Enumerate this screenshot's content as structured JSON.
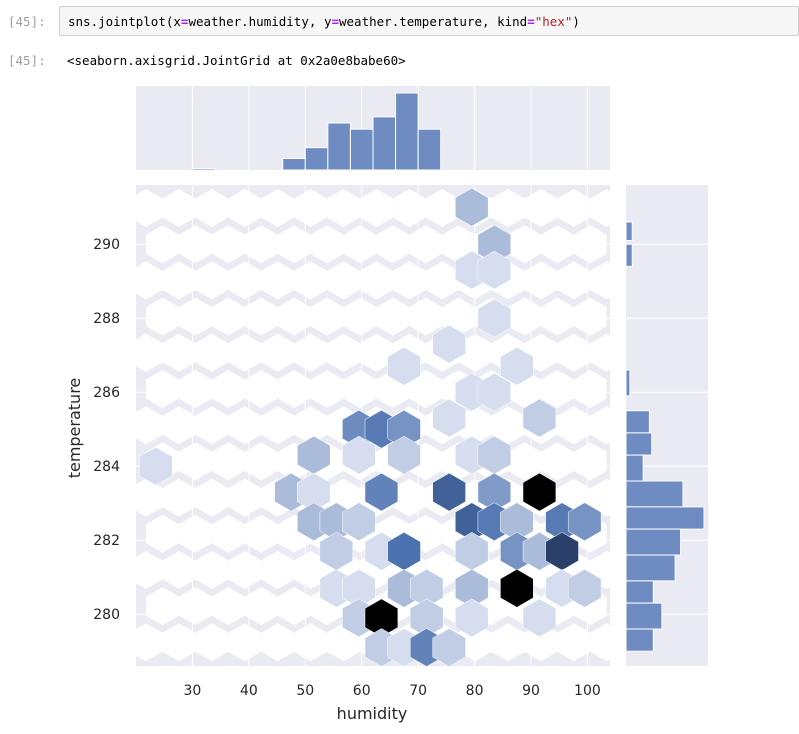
{
  "cell": {
    "input_prompt": "[45]:",
    "output_prompt": "[45]:",
    "code_tokens": [
      {
        "t": "sns",
        "c": "n"
      },
      {
        "t": ".",
        "c": "n"
      },
      {
        "t": "jointplot",
        "c": "n"
      },
      {
        "t": "(",
        "c": "n"
      },
      {
        "t": "x",
        "c": "n"
      },
      {
        "t": "=",
        "c": "kw"
      },
      {
        "t": "weather",
        "c": "n"
      },
      {
        "t": ".",
        "c": "n"
      },
      {
        "t": "humidity",
        "c": "n"
      },
      {
        "t": ", ",
        "c": "n"
      },
      {
        "t": "y",
        "c": "n"
      },
      {
        "t": "=",
        "c": "kw"
      },
      {
        "t": "weather",
        "c": "n"
      },
      {
        "t": ".",
        "c": "n"
      },
      {
        "t": "temperature",
        "c": "n"
      },
      {
        "t": ", ",
        "c": "n"
      },
      {
        "t": "kind",
        "c": "n"
      },
      {
        "t": "=",
        "c": "kw"
      },
      {
        "t": "\"hex\"",
        "c": "s"
      },
      {
        "t": ")",
        "c": "n"
      }
    ],
    "output_text": "<seaborn.axisgrid.JointGrid at 0x2a0e8babe60>"
  },
  "colors": {
    "hist_fill": "#6f8cc2",
    "hex_base": "#4c72b0",
    "grid_bg": "#eaeaf2"
  },
  "chart_data": {
    "type": "hexbin",
    "xlabel": "humidity",
    "ylabel": "temperature",
    "xlim": [
      20,
      104
    ],
    "ylim": [
      278.6,
      291.6
    ],
    "xticks": [
      30,
      40,
      50,
      60,
      70,
      80,
      90,
      100
    ],
    "yticks": [
      280,
      282,
      284,
      286,
      288,
      290
    ],
    "hexbins": [
      {
        "x": 79.5,
        "y": 291.0,
        "d": 0.3
      },
      {
        "x": 83.5,
        "y": 290.0,
        "d": 0.3
      },
      {
        "x": 79.5,
        "y": 289.3,
        "d": 0.1
      },
      {
        "x": 83.5,
        "y": 289.3,
        "d": 0.1
      },
      {
        "x": 83.5,
        "y": 288.0,
        "d": 0.1
      },
      {
        "x": 75.5,
        "y": 287.3,
        "d": 0.1
      },
      {
        "x": 67.5,
        "y": 286.7,
        "d": 0.1
      },
      {
        "x": 79.5,
        "y": 286.0,
        "d": 0.1
      },
      {
        "x": 83.5,
        "y": 286.0,
        "d": 0.1
      },
      {
        "x": 87.5,
        "y": 286.7,
        "d": 0.1
      },
      {
        "x": 75.5,
        "y": 285.3,
        "d": 0.1
      },
      {
        "x": 91.5,
        "y": 285.3,
        "d": 0.2
      },
      {
        "x": 59.5,
        "y": 285.0,
        "d": 0.6
      },
      {
        "x": 63.5,
        "y": 285.0,
        "d": 0.7
      },
      {
        "x": 67.5,
        "y": 285.0,
        "d": 0.55
      },
      {
        "x": 23.5,
        "y": 284.0,
        "d": 0.1
      },
      {
        "x": 51.5,
        "y": 284.3,
        "d": 0.3
      },
      {
        "x": 59.5,
        "y": 284.3,
        "d": 0.1
      },
      {
        "x": 67.5,
        "y": 284.3,
        "d": 0.2
      },
      {
        "x": 79.5,
        "y": 284.3,
        "d": 0.1
      },
      {
        "x": 83.5,
        "y": 284.3,
        "d": 0.2
      },
      {
        "x": 47.5,
        "y": 283.3,
        "d": 0.3
      },
      {
        "x": 51.5,
        "y": 283.3,
        "d": 0.1
      },
      {
        "x": 63.5,
        "y": 283.3,
        "d": 0.65
      },
      {
        "x": 75.5,
        "y": 283.3,
        "d": 0.8
      },
      {
        "x": 83.5,
        "y": 283.3,
        "d": 0.5
      },
      {
        "x": 91.5,
        "y": 283.3,
        "d": 1.0
      },
      {
        "x": 51.5,
        "y": 282.5,
        "d": 0.3
      },
      {
        "x": 55.5,
        "y": 282.5,
        "d": 0.3
      },
      {
        "x": 59.5,
        "y": 282.5,
        "d": 0.2
      },
      {
        "x": 79.5,
        "y": 282.5,
        "d": 0.8
      },
      {
        "x": 83.5,
        "y": 282.5,
        "d": 0.7
      },
      {
        "x": 87.5,
        "y": 282.5,
        "d": 0.3
      },
      {
        "x": 95.5,
        "y": 282.5,
        "d": 0.7
      },
      {
        "x": 99.5,
        "y": 282.5,
        "d": 0.55
      },
      {
        "x": 55.5,
        "y": 281.7,
        "d": 0.2
      },
      {
        "x": 63.5,
        "y": 281.7,
        "d": 0.1
      },
      {
        "x": 67.5,
        "y": 281.7,
        "d": 0.75
      },
      {
        "x": 79.5,
        "y": 281.7,
        "d": 0.2
      },
      {
        "x": 87.5,
        "y": 281.7,
        "d": 0.55
      },
      {
        "x": 91.5,
        "y": 281.7,
        "d": 0.3
      },
      {
        "x": 95.5,
        "y": 281.7,
        "d": 0.9
      },
      {
        "x": 55.5,
        "y": 280.7,
        "d": 0.1
      },
      {
        "x": 59.5,
        "y": 280.7,
        "d": 0.1
      },
      {
        "x": 67.5,
        "y": 280.7,
        "d": 0.3
      },
      {
        "x": 71.5,
        "y": 280.7,
        "d": 0.2
      },
      {
        "x": 79.5,
        "y": 280.7,
        "d": 0.3
      },
      {
        "x": 87.5,
        "y": 280.7,
        "d": 1.0
      },
      {
        "x": 95.5,
        "y": 280.7,
        "d": 0.1
      },
      {
        "x": 99.5,
        "y": 280.7,
        "d": 0.2
      },
      {
        "x": 59.5,
        "y": 279.9,
        "d": 0.2
      },
      {
        "x": 63.5,
        "y": 279.9,
        "d": 1.0
      },
      {
        "x": 71.5,
        "y": 279.9,
        "d": 0.2
      },
      {
        "x": 79.5,
        "y": 279.9,
        "d": 0.1
      },
      {
        "x": 91.5,
        "y": 279.9,
        "d": 0.1
      },
      {
        "x": 63.5,
        "y": 279.1,
        "d": 0.2
      },
      {
        "x": 67.5,
        "y": 279.1,
        "d": 0.1
      },
      {
        "x": 71.5,
        "y": 279.1,
        "d": 0.65
      },
      {
        "x": 75.5,
        "y": 279.1,
        "d": 0.2
      }
    ],
    "x_hist": {
      "edges": [
        25.8,
        30,
        34,
        37.8,
        41.9,
        46,
        50,
        54,
        58,
        62,
        66,
        70,
        74,
        78,
        82,
        86,
        90,
        94,
        98,
        102,
        106
      ],
      "heights_rel": [
        0,
        0.02,
        0,
        0,
        0,
        0.15,
        0.29,
        0.61,
        0.53,
        0.69,
        1.0,
        0.53,
        0,
        0,
        0,
        0,
        0,
        0,
        0,
        0
      ]
    },
    "y_hist": {
      "bins": [
        {
          "y0": 290.6,
          "y1": 290.1,
          "w": 0.08
        },
        {
          "y0": 290.0,
          "y1": 289.4,
          "w": 0.08
        },
        {
          "y0": 286.6,
          "y1": 285.9,
          "w": 0.05
        },
        {
          "y0": 285.5,
          "y1": 284.9,
          "w": 0.3
        },
        {
          "y0": 284.9,
          "y1": 284.3,
          "w": 0.33
        },
        {
          "y0": 284.3,
          "y1": 283.6,
          "w": 0.22
        },
        {
          "y0": 283.6,
          "y1": 282.9,
          "w": 0.73
        },
        {
          "y0": 282.9,
          "y1": 282.3,
          "w": 1.0
        },
        {
          "y0": 282.3,
          "y1": 281.6,
          "w": 0.7
        },
        {
          "y0": 281.6,
          "y1": 280.9,
          "w": 0.63
        },
        {
          "y0": 280.9,
          "y1": 280.3,
          "w": 0.35
        },
        {
          "y0": 280.3,
          "y1": 279.6,
          "w": 0.46
        },
        {
          "y0": 279.6,
          "y1": 279.0,
          "w": 0.35
        }
      ]
    }
  }
}
